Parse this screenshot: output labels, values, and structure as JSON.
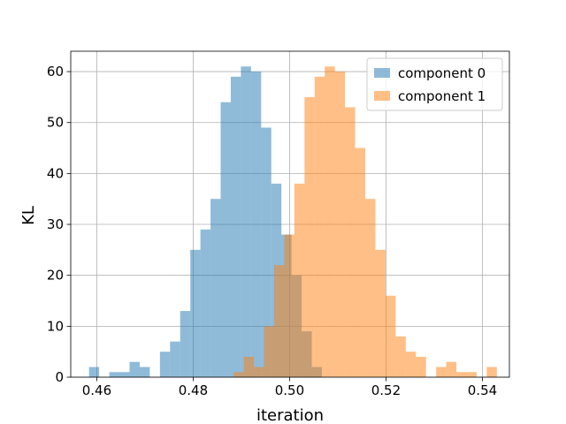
{
  "chart_data": {
    "type": "histogram",
    "title": "",
    "xlabel": "iteration",
    "ylabel": "KL",
    "xlim": [
      0.4546,
      0.5456
    ],
    "ylim": [
      0,
      64
    ],
    "xticks": [
      0.46,
      0.48,
      0.5,
      0.52,
      0.54
    ],
    "xtick_labels": [
      "0.46",
      "0.48",
      "0.50",
      "0.52",
      "0.54"
    ],
    "yticks": [
      0,
      10,
      20,
      30,
      40,
      50,
      60
    ],
    "ytick_labels": [
      "0",
      "10",
      "20",
      "30",
      "40",
      "50",
      "60"
    ],
    "grid": true,
    "legend_position": "top-right",
    "series": [
      {
        "name": "component 0",
        "color": "#1f77b4",
        "opacity": 0.5,
        "bin_start": 0.4584,
        "bin_width": 0.0021,
        "counts": [
          2,
          0,
          1,
          1,
          3,
          2,
          0,
          5,
          7,
          13,
          25,
          29,
          35,
          54,
          59,
          61,
          60,
          49,
          38,
          28,
          20,
          9,
          2,
          0
        ]
      },
      {
        "name": "component 1",
        "color": "#ff7f0e",
        "opacity": 0.5,
        "bin_start": 0.4884,
        "bin_width": 0.0021,
        "counts": [
          1,
          4,
          2,
          10,
          22,
          28,
          38,
          55,
          59,
          61,
          60,
          53,
          45,
          35,
          25,
          16,
          8,
          5,
          4,
          0,
          2,
          3,
          1,
          1,
          0,
          2
        ]
      }
    ]
  }
}
